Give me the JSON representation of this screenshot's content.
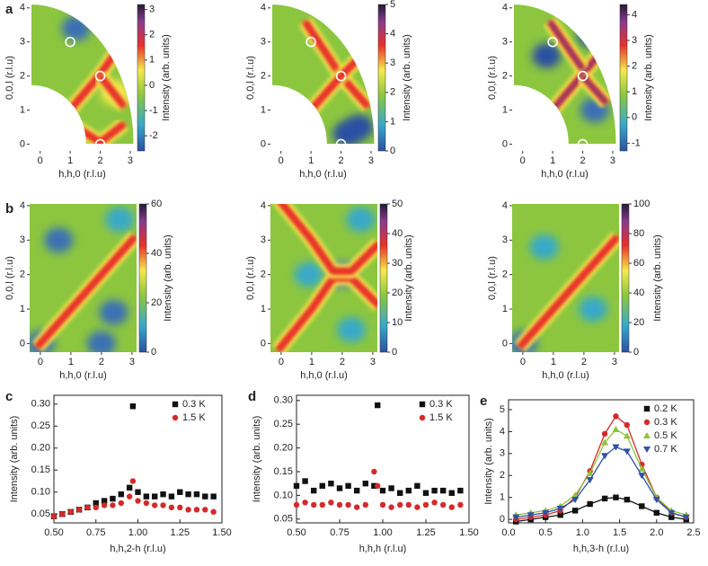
{
  "chart_data": [
    {
      "type": "heatmap",
      "panel_label": "a",
      "masked": true,
      "xlabel": "h,h,0 (r.l.u)",
      "ylabel": "0,0,l (r.l.u)",
      "colorbar_label": "Intensity (arb. units)",
      "xlim": [
        -0.35,
        3.15
      ],
      "ylim": [
        -0.2,
        4.1
      ],
      "xticks": [
        0,
        1,
        2,
        3
      ],
      "yticks": [
        0,
        1,
        2,
        3,
        4
      ],
      "clim": [
        -2.6,
        3.2
      ],
      "cticks": [
        -2,
        -1,
        0,
        1,
        2,
        3
      ],
      "markers": {
        "x": [
          1,
          2,
          1,
          2
        ],
        "y": [
          3,
          2,
          1,
          0
        ]
      }
    },
    {
      "type": "heatmap",
      "masked": true,
      "xlabel": "h,h,0 (r.l.u)",
      "ylabel": "0,0,l (r.l.u)",
      "colorbar_label": "Intensity (arb. units)",
      "xlim": [
        -0.35,
        3.15
      ],
      "ylim": [
        -0.2,
        4.1
      ],
      "xticks": [
        0,
        1,
        2,
        3
      ],
      "yticks": [
        0,
        1,
        2,
        3,
        4
      ],
      "clim": [
        0,
        5
      ],
      "cticks": [
        0,
        1,
        2,
        3,
        4,
        5
      ],
      "markers": {
        "x": [
          1,
          2,
          1,
          2
        ],
        "y": [
          3,
          2,
          1,
          0
        ]
      }
    },
    {
      "type": "heatmap",
      "masked": true,
      "xlabel": "h,h,0 (r.l.u)",
      "ylabel": "0,0,l (r.l.u)",
      "colorbar_label": "Intensity (arb. units)",
      "xlim": [
        -0.35,
        3.15
      ],
      "ylim": [
        -0.2,
        4.1
      ],
      "xticks": [
        0,
        1,
        2,
        3
      ],
      "yticks": [
        0,
        1,
        2,
        3,
        4
      ],
      "clim": [
        -1.3,
        4.4
      ],
      "cticks": [
        -1,
        0,
        1,
        2,
        3,
        4
      ],
      "markers": {
        "x": [
          1,
          2,
          1,
          2
        ],
        "y": [
          3,
          2,
          1,
          0
        ]
      }
    },
    {
      "type": "heatmap",
      "panel_label": "b",
      "masked": false,
      "xlabel": "h,h,0 (r.l.u)",
      "ylabel": "0,0,l (r.l.u)",
      "colorbar_label": "Intensity (arb. units)",
      "xlim": [
        -0.35,
        3.15
      ],
      "ylim": [
        -0.25,
        4.05
      ],
      "xticks": [
        0,
        1,
        2,
        3
      ],
      "yticks": [
        0,
        1,
        2,
        3,
        4
      ],
      "clim": [
        0,
        60
      ],
      "cticks": [
        0,
        20,
        40,
        60
      ]
    },
    {
      "type": "heatmap",
      "masked": false,
      "xlabel": "h,h,0 (r.l.u)",
      "ylabel": "0,0,l (r.l.u)",
      "colorbar_label": "Intensity (arb. units)",
      "xlim": [
        -0.35,
        3.15
      ],
      "ylim": [
        -0.25,
        4.05
      ],
      "xticks": [
        0,
        1,
        2,
        3
      ],
      "yticks": [
        0,
        1,
        2,
        3,
        4
      ],
      "clim": [
        0,
        50
      ],
      "cticks": [
        0,
        10,
        20,
        30,
        40,
        50
      ]
    },
    {
      "type": "heatmap",
      "masked": false,
      "xlabel": "h,h,0 (r.l.u)",
      "ylabel": "0,0,l (r.l.u)",
      "colorbar_label": "Intensity (arb. units)",
      "xlim": [
        -0.35,
        3.15
      ],
      "ylim": [
        -0.25,
        4.05
      ],
      "xticks": [
        0,
        1,
        2,
        3
      ],
      "yticks": [
        0,
        1,
        2,
        3,
        4
      ],
      "clim": [
        0,
        100
      ],
      "cticks": [
        0,
        20,
        40,
        60,
        80,
        100
      ]
    },
    {
      "type": "scatter",
      "panel_label": "c",
      "xlabel": "h,h,2-h (r.l.u)",
      "ylabel": "Intensity (arb. units)",
      "legend": "upper right",
      "line": false,
      "xlim": [
        0.5,
        1.5
      ],
      "ylim": [
        0.03,
        0.32
      ],
      "xticks": [
        {
          "value": 0.5,
          "label": "0.50"
        },
        0.75,
        {
          "value": 1,
          "label": "1.00"
        },
        1.25,
        {
          "value": 1.5,
          "label": "1.50"
        }
      ],
      "yticks": [
        0.05,
        {
          "value": 0.1,
          "label": "0.10"
        },
        0.15,
        {
          "value": 0.2,
          "label": "0.20"
        },
        0.25,
        {
          "value": 0.3,
          "label": "0.30"
        }
      ],
      "series": [
        {
          "name": "0.3 K",
          "color": "#111111",
          "marker": "square",
          "x": [
            0.5,
            0.55,
            0.6,
            0.65,
            0.7,
            0.75,
            0.8,
            0.85,
            0.9,
            0.95,
            0.97,
            1.0,
            1.05,
            1.1,
            1.15,
            1.2,
            1.25,
            1.3,
            1.35,
            1.4,
            1.45
          ],
          "values": [
            0.045,
            0.05,
            0.055,
            0.06,
            0.065,
            0.075,
            0.08,
            0.085,
            0.095,
            0.11,
            0.295,
            0.1,
            0.09,
            0.09,
            0.095,
            0.09,
            0.1,
            0.095,
            0.095,
            0.09,
            0.09
          ]
        },
        {
          "name": "1.5 K",
          "color": "#d42a2a",
          "marker": "circle",
          "x": [
            0.5,
            0.55,
            0.6,
            0.65,
            0.7,
            0.75,
            0.8,
            0.85,
            0.9,
            0.95,
            0.97,
            1.0,
            1.05,
            1.1,
            1.15,
            1.2,
            1.25,
            1.3,
            1.35,
            1.4,
            1.45
          ],
          "values": [
            0.045,
            0.05,
            0.055,
            0.06,
            0.065,
            0.065,
            0.07,
            0.07,
            0.075,
            0.09,
            0.125,
            0.08,
            0.075,
            0.07,
            0.07,
            0.065,
            0.065,
            0.06,
            0.06,
            0.06,
            0.055
          ]
        }
      ]
    },
    {
      "type": "scatter",
      "panel_label": "d",
      "xlabel": "h,h,h (r.l.u)",
      "ylabel": "Intensity (arb. units)",
      "legend": "upper right",
      "line": false,
      "xlim": [
        0.5,
        1.5
      ],
      "ylim": [
        0.042,
        0.311
      ],
      "xticks": [
        {
          "value": 0.5,
          "label": "0.50"
        },
        0.75,
        {
          "value": 1,
          "label": "1.00"
        },
        1.25,
        {
          "value": 1.5,
          "label": "1.50"
        }
      ],
      "yticks": [
        0.05,
        {
          "value": 0.1,
          "label": "0.10"
        },
        0.15,
        {
          "value": 0.2,
          "label": "0.20"
        },
        0.25,
        {
          "value": 0.3,
          "label": "0.30"
        }
      ],
      "series": [
        {
          "name": "0.3 K",
          "color": "#111111",
          "marker": "square",
          "x": [
            0.5,
            0.55,
            0.6,
            0.65,
            0.7,
            0.75,
            0.8,
            0.85,
            0.9,
            0.95,
            0.97,
            1.0,
            1.05,
            1.1,
            1.15,
            1.2,
            1.25,
            1.3,
            1.35,
            1.4,
            1.45
          ],
          "values": [
            0.12,
            0.13,
            0.11,
            0.12,
            0.125,
            0.115,
            0.12,
            0.11,
            0.125,
            0.12,
            0.29,
            0.11,
            0.115,
            0.105,
            0.11,
            0.12,
            0.105,
            0.11,
            0.11,
            0.105,
            0.11
          ]
        },
        {
          "name": "1.5 K",
          "color": "#d42a2a",
          "marker": "circle",
          "x": [
            0.5,
            0.55,
            0.6,
            0.65,
            0.7,
            0.75,
            0.8,
            0.85,
            0.9,
            0.95,
            0.97,
            1.0,
            1.05,
            1.1,
            1.15,
            1.2,
            1.25,
            1.3,
            1.35,
            1.4,
            1.45
          ],
          "values": [
            0.08,
            0.085,
            0.08,
            0.08,
            0.085,
            0.08,
            0.08,
            0.075,
            0.08,
            0.15,
            0.12,
            0.08,
            0.075,
            0.08,
            0.08,
            0.075,
            0.08,
            0.085,
            0.08,
            0.075,
            0.08
          ]
        }
      ]
    },
    {
      "type": "scatter",
      "panel_label": "e",
      "xlabel": "h,h,3-h (r.l.u)",
      "ylabel": "Intensity (arb. units)",
      "legend": "upper right",
      "line": true,
      "xlim": [
        0,
        2.5
      ],
      "ylim": [
        -0.16,
        5.45
      ],
      "xticks": [
        {
          "value": 0,
          "label": "0.0"
        },
        0.5,
        {
          "value": 1,
          "label": "1.0"
        },
        1.5,
        {
          "value": 2,
          "label": "2.0"
        },
        2.5
      ],
      "yticks": [
        0,
        1,
        2,
        3,
        4,
        5
      ],
      "series": [
        {
          "name": "0.2 K",
          "color": "#111111",
          "marker": "square",
          "x": [
            0.1,
            0.3,
            0.5,
            0.7,
            0.9,
            1.1,
            1.3,
            1.45,
            1.6,
            1.8,
            2.0,
            2.2,
            2.4
          ],
          "values": [
            -0.1,
            0,
            0.1,
            0.2,
            0.4,
            0.7,
            0.95,
            1.0,
            0.9,
            0.6,
            0.3,
            0.1,
            0
          ]
        },
        {
          "name": "0.3 K",
          "color": "#d42a2a",
          "marker": "circle",
          "x": [
            0.1,
            0.3,
            0.5,
            0.7,
            0.9,
            1.1,
            1.3,
            1.45,
            1.6,
            1.8,
            2.0,
            2.2,
            2.4
          ],
          "values": [
            0,
            0.1,
            0.2,
            0.4,
            1.0,
            2.2,
            3.9,
            4.7,
            4.3,
            2.5,
            1.0,
            0.3,
            0.1
          ]
        },
        {
          "name": "0.5 K",
          "color": "#8fc43a",
          "marker": "triangle-up",
          "x": [
            0.1,
            0.3,
            0.5,
            0.7,
            0.9,
            1.1,
            1.3,
            1.45,
            1.6,
            1.8,
            2.0,
            2.2,
            2.4
          ],
          "values": [
            0.2,
            0.3,
            0.4,
            0.6,
            1.1,
            2.1,
            3.5,
            4.1,
            3.8,
            2.3,
            1.0,
            0.4,
            0.2
          ]
        },
        {
          "name": "0.7 K",
          "color": "#2f4fa8",
          "marker": "triangle-down",
          "x": [
            0.1,
            0.3,
            0.5,
            0.7,
            0.9,
            1.1,
            1.3,
            1.45,
            1.6,
            1.8,
            2.0,
            2.2,
            2.4
          ],
          "values": [
            0.1,
            0.2,
            0.3,
            0.5,
            0.9,
            1.8,
            2.9,
            3.3,
            3.1,
            2.0,
            0.9,
            0.3,
            0.1
          ]
        }
      ]
    }
  ]
}
